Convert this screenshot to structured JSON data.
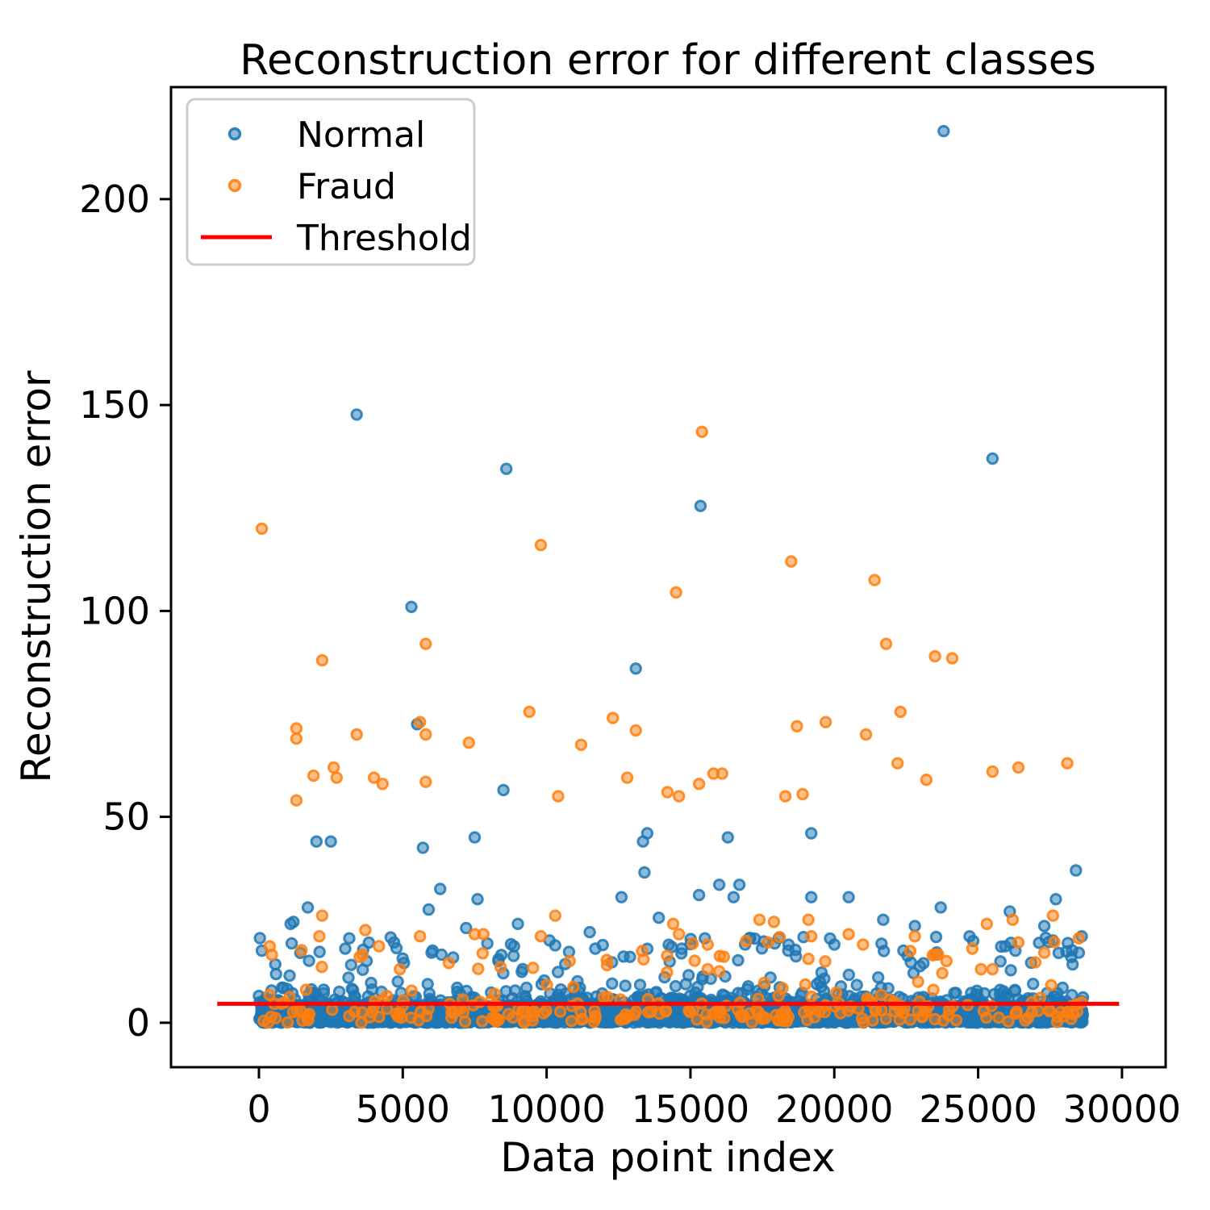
{
  "figure": {
    "title": "Reconstruction error for different classes",
    "background": "#ffffff",
    "text_color": "#000000"
  },
  "axes": {
    "xlabel": "Data point index",
    "ylabel": "Reconstruction error",
    "x_ticks": [
      0,
      5000,
      10000,
      15000,
      20000,
      25000,
      30000
    ],
    "y_ticks": [
      0,
      50,
      100,
      150,
      200
    ],
    "xlim": [
      -3056,
      31517
    ],
    "ylim": [
      -10.8,
      227.2
    ],
    "grid": false,
    "spine_color": "#000000"
  },
  "legend": {
    "position": "upper-left",
    "border_color": "#cccccc",
    "items": [
      {
        "label": "Normal",
        "type": "marker",
        "color": "#1f77b4"
      },
      {
        "label": "Fraud",
        "type": "marker",
        "color": "#ff7f0e"
      },
      {
        "label": "Threshold",
        "type": "line",
        "color": "#ff0000"
      }
    ]
  },
  "chart_data": {
    "type": "scatter",
    "title": "Reconstruction error for different classes",
    "xlabel": "Data point index",
    "ylabel": "Reconstruction error",
    "marker": {
      "radius": 6.2,
      "fill_opacity": 0.5,
      "stroke_opacity": 0.85,
      "stroke_width": 3
    },
    "threshold": {
      "label": "Threshold",
      "value": 4.6,
      "color": "#ff0000",
      "x_start": -1450,
      "x_end": 29900,
      "line_width": 5
    },
    "series": [
      {
        "name": "Normal",
        "color": "#1f77b4",
        "outlier_points": [
          [
            23800,
            216.5
          ],
          [
            3400,
            147.7
          ],
          [
            25500,
            137
          ],
          [
            8600,
            134.5
          ],
          [
            15350,
            125.5
          ],
          [
            5300,
            101
          ],
          [
            13100,
            86
          ],
          [
            5500,
            72.5
          ],
          [
            8500,
            56.5
          ],
          [
            13500,
            46
          ],
          [
            19200,
            46
          ],
          [
            7500,
            45
          ],
          [
            16300,
            45
          ],
          [
            13350,
            44
          ],
          [
            2000,
            44
          ],
          [
            2500,
            44
          ],
          [
            5700,
            42.5
          ],
          [
            28400,
            37
          ],
          [
            13400,
            36.5
          ],
          [
            16000,
            33.5
          ],
          [
            16700,
            33.5
          ],
          [
            6300,
            32.5
          ],
          [
            15300,
            31
          ],
          [
            16500,
            30.5
          ],
          [
            12600,
            30.5
          ],
          [
            19200,
            30.5
          ],
          [
            27700,
            30
          ],
          [
            20500,
            30.5
          ],
          [
            7600,
            30
          ],
          [
            23700,
            28
          ],
          [
            26100,
            27
          ],
          [
            1700,
            28
          ],
          [
            5900,
            27.5
          ],
          [
            27300,
            23.5
          ],
          [
            7200,
            23
          ],
          [
            1100,
            24
          ],
          [
            1200,
            24.5
          ],
          [
            21700,
            25
          ],
          [
            22800,
            23.5
          ],
          [
            13900,
            25.5
          ],
          [
            9000,
            24
          ],
          [
            10100,
            20
          ],
          [
            15500,
            20.5
          ],
          [
            16900,
            19
          ],
          [
            18400,
            17.5
          ],
          [
            27600,
            20
          ],
          [
            28500,
            17
          ],
          [
            4700,
            19.5
          ],
          [
            28600,
            21
          ],
          [
            100,
            17.5
          ],
          [
            12900,
            16
          ],
          [
            24700,
            21
          ],
          [
            25800,
            18.5
          ],
          [
            11500,
            22
          ],
          [
            6000,
            17
          ],
          [
            3000,
            18
          ],
          [
            20000,
            19
          ],
          [
            22400,
            17.5
          ],
          [
            14700,
            18
          ]
        ]
      },
      {
        "name": "Fraud",
        "color": "#ff7f0e",
        "outlier_points": [
          [
            100,
            120
          ],
          [
            15400,
            143.5
          ],
          [
            9800,
            116
          ],
          [
            18500,
            112
          ],
          [
            21400,
            107.5
          ],
          [
            14500,
            104.5
          ],
          [
            5800,
            92
          ],
          [
            21800,
            92
          ],
          [
            2200,
            88
          ],
          [
            23500,
            89
          ],
          [
            24100,
            88.5
          ],
          [
            9400,
            75.5
          ],
          [
            12300,
            74
          ],
          [
            22300,
            75.5
          ],
          [
            19700,
            73
          ],
          [
            18700,
            72
          ],
          [
            5600,
            73
          ],
          [
            1300,
            71.5
          ],
          [
            1300,
            69
          ],
          [
            3400,
            70
          ],
          [
            5800,
            70
          ],
          [
            7300,
            68
          ],
          [
            11200,
            67.5
          ],
          [
            13100,
            71
          ],
          [
            21100,
            70
          ],
          [
            16100,
            60.5
          ],
          [
            22200,
            63
          ],
          [
            26400,
            62
          ],
          [
            28100,
            63
          ],
          [
            25500,
            61
          ],
          [
            1900,
            60
          ],
          [
            15800,
            60.5
          ],
          [
            2600,
            62
          ],
          [
            2700,
            59.5
          ],
          [
            4000,
            59.5
          ],
          [
            4300,
            58
          ],
          [
            5800,
            58.5
          ],
          [
            12800,
            59.5
          ],
          [
            23200,
            59
          ],
          [
            14200,
            56
          ],
          [
            14600,
            55
          ],
          [
            18300,
            55
          ],
          [
            18900,
            55.5
          ],
          [
            10400,
            55
          ],
          [
            1300,
            54
          ],
          [
            15300,
            58
          ],
          [
            2200,
            26
          ],
          [
            2100,
            21
          ],
          [
            3700,
            22.5
          ],
          [
            5600,
            21
          ],
          [
            7500,
            21.5
          ],
          [
            7800,
            21.5
          ],
          [
            9800,
            21
          ],
          [
            10300,
            26
          ],
          [
            14400,
            24
          ],
          [
            14600,
            21.5
          ],
          [
            15600,
            19
          ],
          [
            17400,
            25
          ],
          [
            17900,
            24.5
          ],
          [
            19100,
            25
          ],
          [
            19200,
            21
          ],
          [
            17700,
            19.5
          ],
          [
            19100,
            15.5
          ],
          [
            10800,
            15
          ],
          [
            15600,
            13
          ],
          [
            16000,
            12.5
          ],
          [
            24800,
            18
          ],
          [
            25300,
            24
          ],
          [
            26200,
            25
          ],
          [
            26400,
            19.5
          ],
          [
            27300,
            17
          ],
          [
            27600,
            26
          ],
          [
            28500,
            20.5
          ],
          [
            450,
            16.5
          ],
          [
            3600,
            16.5
          ],
          [
            3500,
            16
          ],
          [
            25100,
            13
          ],
          [
            25500,
            13
          ],
          [
            20500,
            21.5
          ],
          [
            21000,
            19
          ],
          [
            22800,
            21
          ],
          [
            23900,
            15
          ],
          [
            12100,
            14
          ],
          [
            8400,
            13.5
          ],
          [
            6600,
            14.5
          ],
          [
            4900,
            13
          ]
        ],
        "note": "orange fraud points are sparse; most sit between 0 and 25 with outliers up to 143"
      }
    ],
    "dense_band": {
      "description": "visually solid band of overlapping points near y=0, x from 0 to 28650",
      "x_max": 28650,
      "seed": 1234,
      "normal": {
        "count_core": 2400,
        "sigma_core": 1.9,
        "count_tail": 520,
        "tail_base": 3.5,
        "tail_scale": 2.3,
        "tail_max": 15.5,
        "count_upper": 70,
        "upper_min": 14,
        "upper_max": 21
      },
      "fraud": {
        "count_core": 150,
        "sigma_core": 2.4,
        "count_tail": 85,
        "tail_base": 2.5,
        "tail_scale": 3.2,
        "tail_max": 13.5,
        "count_upper": 22,
        "upper_min": 13.5,
        "upper_max": 22
      }
    }
  }
}
